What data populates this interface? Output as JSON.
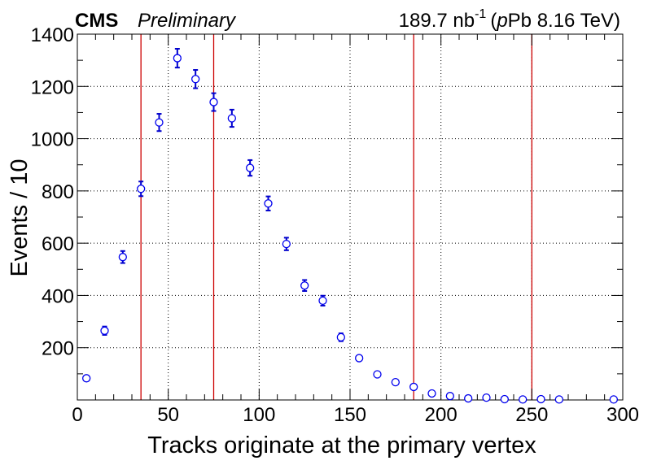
{
  "header": {
    "experiment": "CMS",
    "status": "Preliminary",
    "lumi_value": "189.7 nb",
    "lumi_exponent": "-1",
    "energy_open": "(",
    "energy_italic": "p",
    "energy_rest": "Pb 8.16 TeV)"
  },
  "chart_data": {
    "type": "scatter",
    "xlabel": "Tracks originate at the primary vertex",
    "ylabel": "Events / 10",
    "xlim": [
      0,
      300
    ],
    "ylim": [
      0,
      1400
    ],
    "xticks": [
      0,
      50,
      100,
      150,
      200,
      250,
      300
    ],
    "yticks": [
      200,
      400,
      600,
      800,
      1000,
      1200,
      1400
    ],
    "grid": true,
    "marker": "open-circle",
    "marker_color": "#0000ee",
    "error_bar_color": "#0000cc",
    "vline_color": "#cc0000",
    "vertical_lines_x": [
      35,
      75,
      185,
      250
    ],
    "points": [
      {
        "x": 5,
        "y": 83,
        "err": 0
      },
      {
        "x": 15,
        "y": 265,
        "err": 16
      },
      {
        "x": 25,
        "y": 547,
        "err": 23
      },
      {
        "x": 35,
        "y": 808,
        "err": 28
      },
      {
        "x": 45,
        "y": 1062,
        "err": 33
      },
      {
        "x": 55,
        "y": 1308,
        "err": 36
      },
      {
        "x": 65,
        "y": 1228,
        "err": 35
      },
      {
        "x": 75,
        "y": 1140,
        "err": 34
      },
      {
        "x": 85,
        "y": 1078,
        "err": 33
      },
      {
        "x": 95,
        "y": 888,
        "err": 30
      },
      {
        "x": 105,
        "y": 752,
        "err": 27
      },
      {
        "x": 115,
        "y": 597,
        "err": 24
      },
      {
        "x": 125,
        "y": 438,
        "err": 21
      },
      {
        "x": 135,
        "y": 380,
        "err": 19
      },
      {
        "x": 145,
        "y": 240,
        "err": 15
      },
      {
        "x": 155,
        "y": 160,
        "err": 0
      },
      {
        "x": 165,
        "y": 98,
        "err": 0
      },
      {
        "x": 175,
        "y": 68,
        "err": 0
      },
      {
        "x": 185,
        "y": 50,
        "err": 0
      },
      {
        "x": 195,
        "y": 25,
        "err": 0
      },
      {
        "x": 205,
        "y": 15,
        "err": 0
      },
      {
        "x": 215,
        "y": 6,
        "err": 0
      },
      {
        "x": 225,
        "y": 9,
        "err": 0
      },
      {
        "x": 235,
        "y": 3,
        "err": 0
      },
      {
        "x": 245,
        "y": 2,
        "err": 0
      },
      {
        "x": 255,
        "y": 3,
        "err": 0
      },
      {
        "x": 265,
        "y": 2,
        "err": 0
      },
      {
        "x": 295,
        "y": 2,
        "err": 0
      }
    ]
  }
}
